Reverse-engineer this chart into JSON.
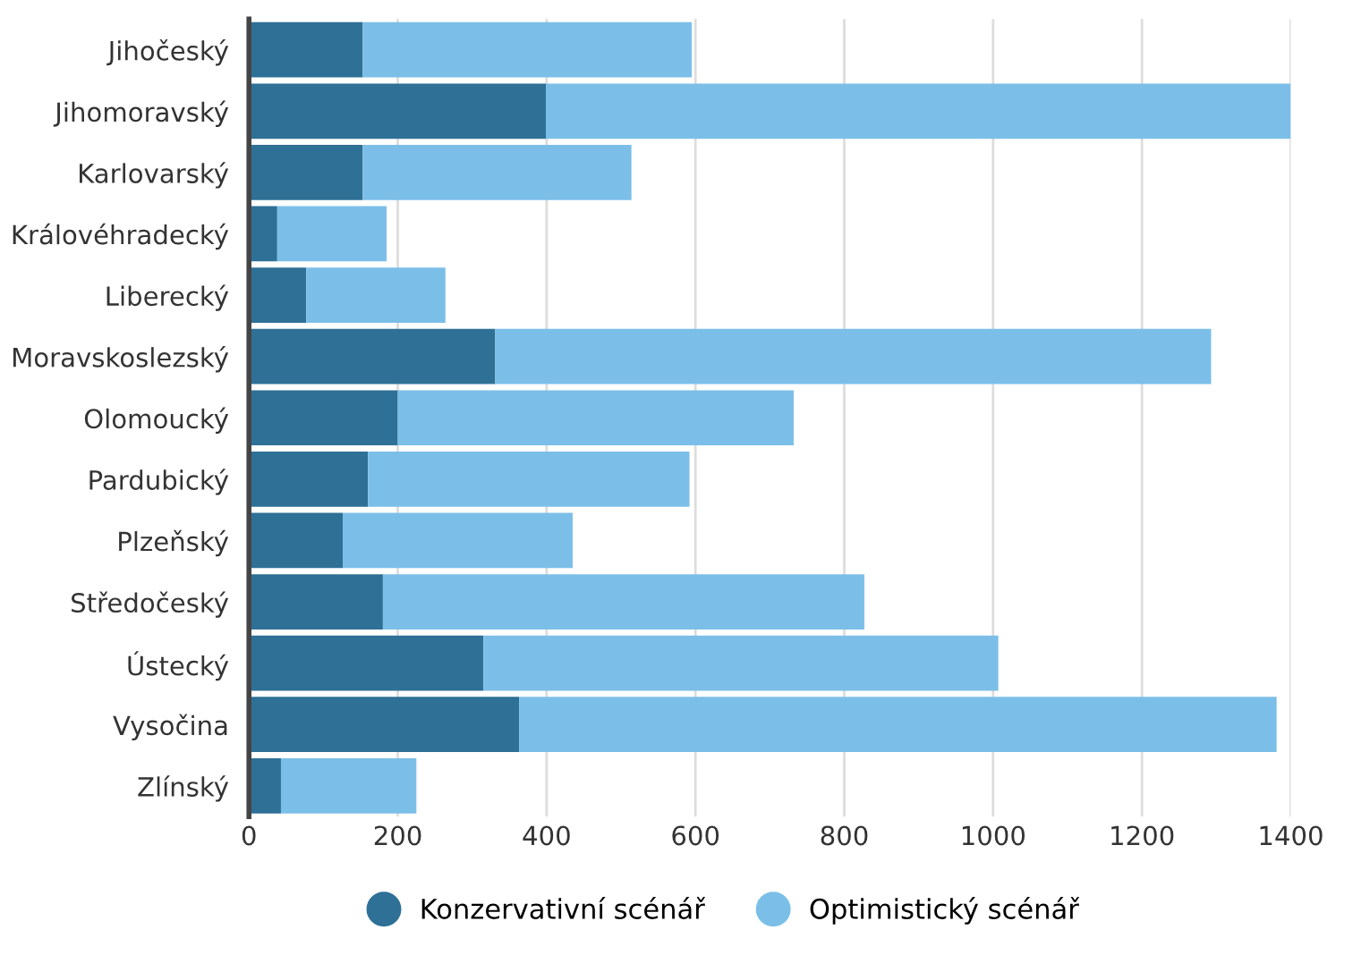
{
  "chart_data": {
    "type": "bar",
    "orientation": "horizontal",
    "stacked": true,
    "categories": [
      "Jihočeský",
      "Jihomoravský",
      "Karlovarský",
      "Královéhradecký",
      "Liberecký",
      "Moravskoslezský",
      "Olomoucký",
      "Pardubický",
      "Plzeňský",
      "Středočeský",
      "Ústecký",
      "Vysočina",
      "Zlínský"
    ],
    "series": [
      {
        "name": "Konzervativní scénář",
        "color": "#2e7096",
        "values": [
          153,
          399,
          153,
          38,
          77,
          331,
          200,
          160,
          126,
          180,
          315,
          363,
          43
        ]
      },
      {
        "name": "Optimistický scénář",
        "color": "#7bbfe8",
        "values": [
          442,
          1001,
          361,
          147,
          187,
          962,
          532,
          432,
          309,
          647,
          692,
          1018,
          182
        ]
      }
    ],
    "xlim": [
      0,
      1400
    ],
    "xticks": [
      0,
      200,
      400,
      600,
      800,
      1000,
      1200,
      1400
    ],
    "grid": "x",
    "legend": "bottom"
  }
}
